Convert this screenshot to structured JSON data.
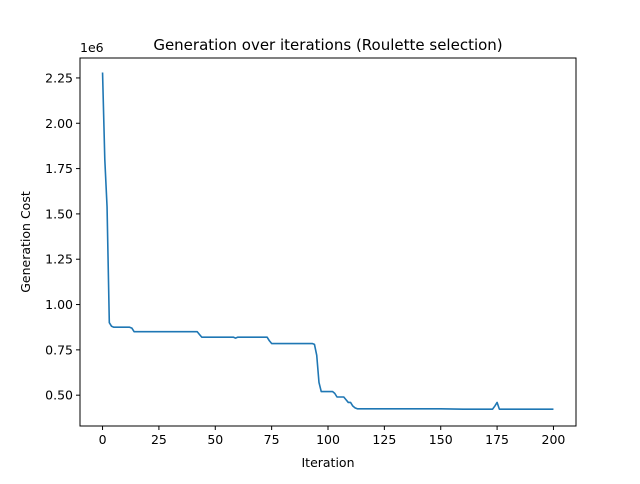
{
  "chart_data": {
    "type": "line",
    "title": "Generation over iterations (Roulette selection)",
    "xlabel": "Iteration",
    "ylabel": "Generation Cost",
    "y_offset_label": "1e6",
    "y_multiplier": 1000000,
    "xlim": [
      -10,
      210
    ],
    "ylim": [
      330000,
      2360000
    ],
    "x_ticks": [
      0,
      25,
      50,
      75,
      100,
      125,
      150,
      175,
      200
    ],
    "y_ticks": [
      500000,
      750000,
      1000000,
      1250000,
      1500000,
      1750000,
      2000000,
      2250000
    ],
    "y_tick_labels": [
      "0.50",
      "0.75",
      "1.00",
      "1.25",
      "1.50",
      "1.75",
      "2.00",
      "2.25"
    ],
    "grid": false,
    "legend": "none",
    "line_color": "#1f77b4",
    "series": [
      {
        "x": [
          0,
          1,
          2,
          3,
          4,
          5,
          6,
          7,
          8,
          9,
          10,
          11,
          12,
          13,
          14,
          15,
          20,
          25,
          30,
          35,
          40,
          42,
          43,
          44,
          45,
          50,
          55,
          58,
          59,
          60,
          62,
          65,
          70,
          73,
          74,
          75,
          80,
          85,
          90,
          93,
          94,
          95,
          96,
          97,
          98,
          100,
          102,
          103,
          104,
          105,
          106,
          107,
          108,
          109,
          110,
          111,
          112,
          113,
          114,
          120,
          125,
          130,
          140,
          150,
          160,
          165,
          170,
          173,
          174,
          175,
          176,
          180,
          190,
          200
        ],
        "y": [
          2280000,
          1800000,
          1540000,
          900000,
          880000,
          875000,
          875000,
          875000,
          875000,
          875000,
          875000,
          875000,
          875000,
          870000,
          850000,
          850000,
          850000,
          850000,
          850000,
          850000,
          850000,
          850000,
          835000,
          820000,
          820000,
          820000,
          820000,
          820000,
          815000,
          820000,
          820000,
          820000,
          820000,
          820000,
          800000,
          785000,
          785000,
          785000,
          785000,
          785000,
          780000,
          720000,
          570000,
          520000,
          520000,
          520000,
          520000,
          510000,
          490000,
          490000,
          490000,
          490000,
          475000,
          460000,
          460000,
          440000,
          430000,
          425000,
          425000,
          425000,
          425000,
          425000,
          425000,
          425000,
          423000,
          423000,
          423000,
          423000,
          440000,
          460000,
          423000,
          423000,
          423000,
          423000
        ]
      }
    ]
  }
}
